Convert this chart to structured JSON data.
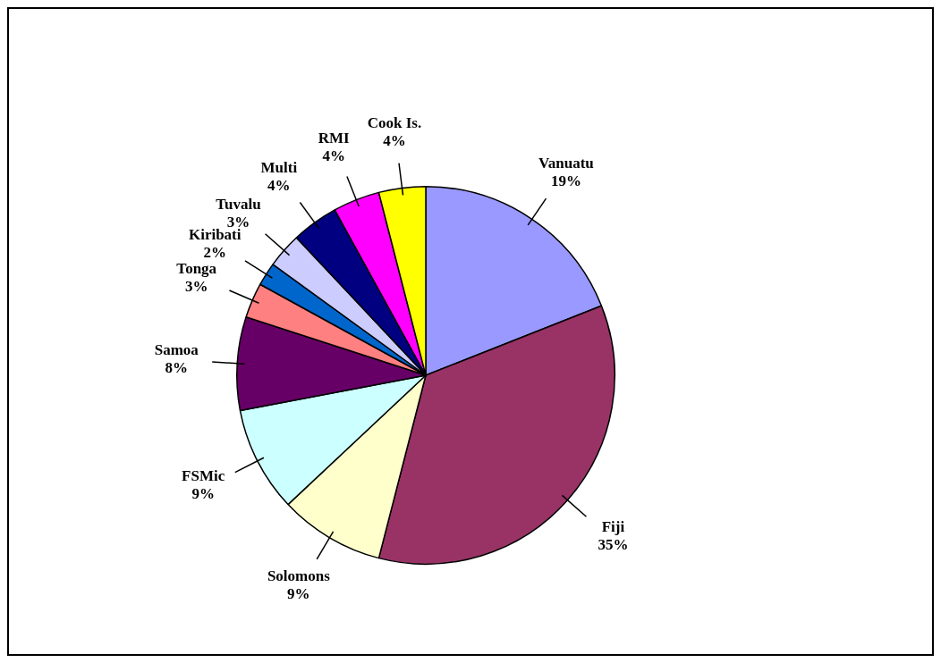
{
  "chart_data": {
    "type": "pie",
    "categories": [
      "Vanuatu",
      "Fiji",
      "Solomons",
      "FSMic",
      "Samoa",
      "Tonga",
      "Kiribati",
      "Tuvalu",
      "Multi",
      "RMI",
      "Cook Is."
    ],
    "values": [
      19,
      35,
      9,
      9,
      8,
      3,
      2,
      3,
      4,
      4,
      4
    ],
    "value_labels": [
      "19%",
      "35%",
      "9%",
      "9%",
      "8%",
      "3%",
      "2%",
      "3%",
      "4%",
      "4%",
      "4%"
    ],
    "colors": [
      "#9999ff",
      "#993366",
      "#ffffcc",
      "#ccffff",
      "#660066",
      "#ff8080",
      "#0066cc",
      "#ccccff",
      "#000080",
      "#ff00ff",
      "#ffff00"
    ],
    "legend": false
  }
}
